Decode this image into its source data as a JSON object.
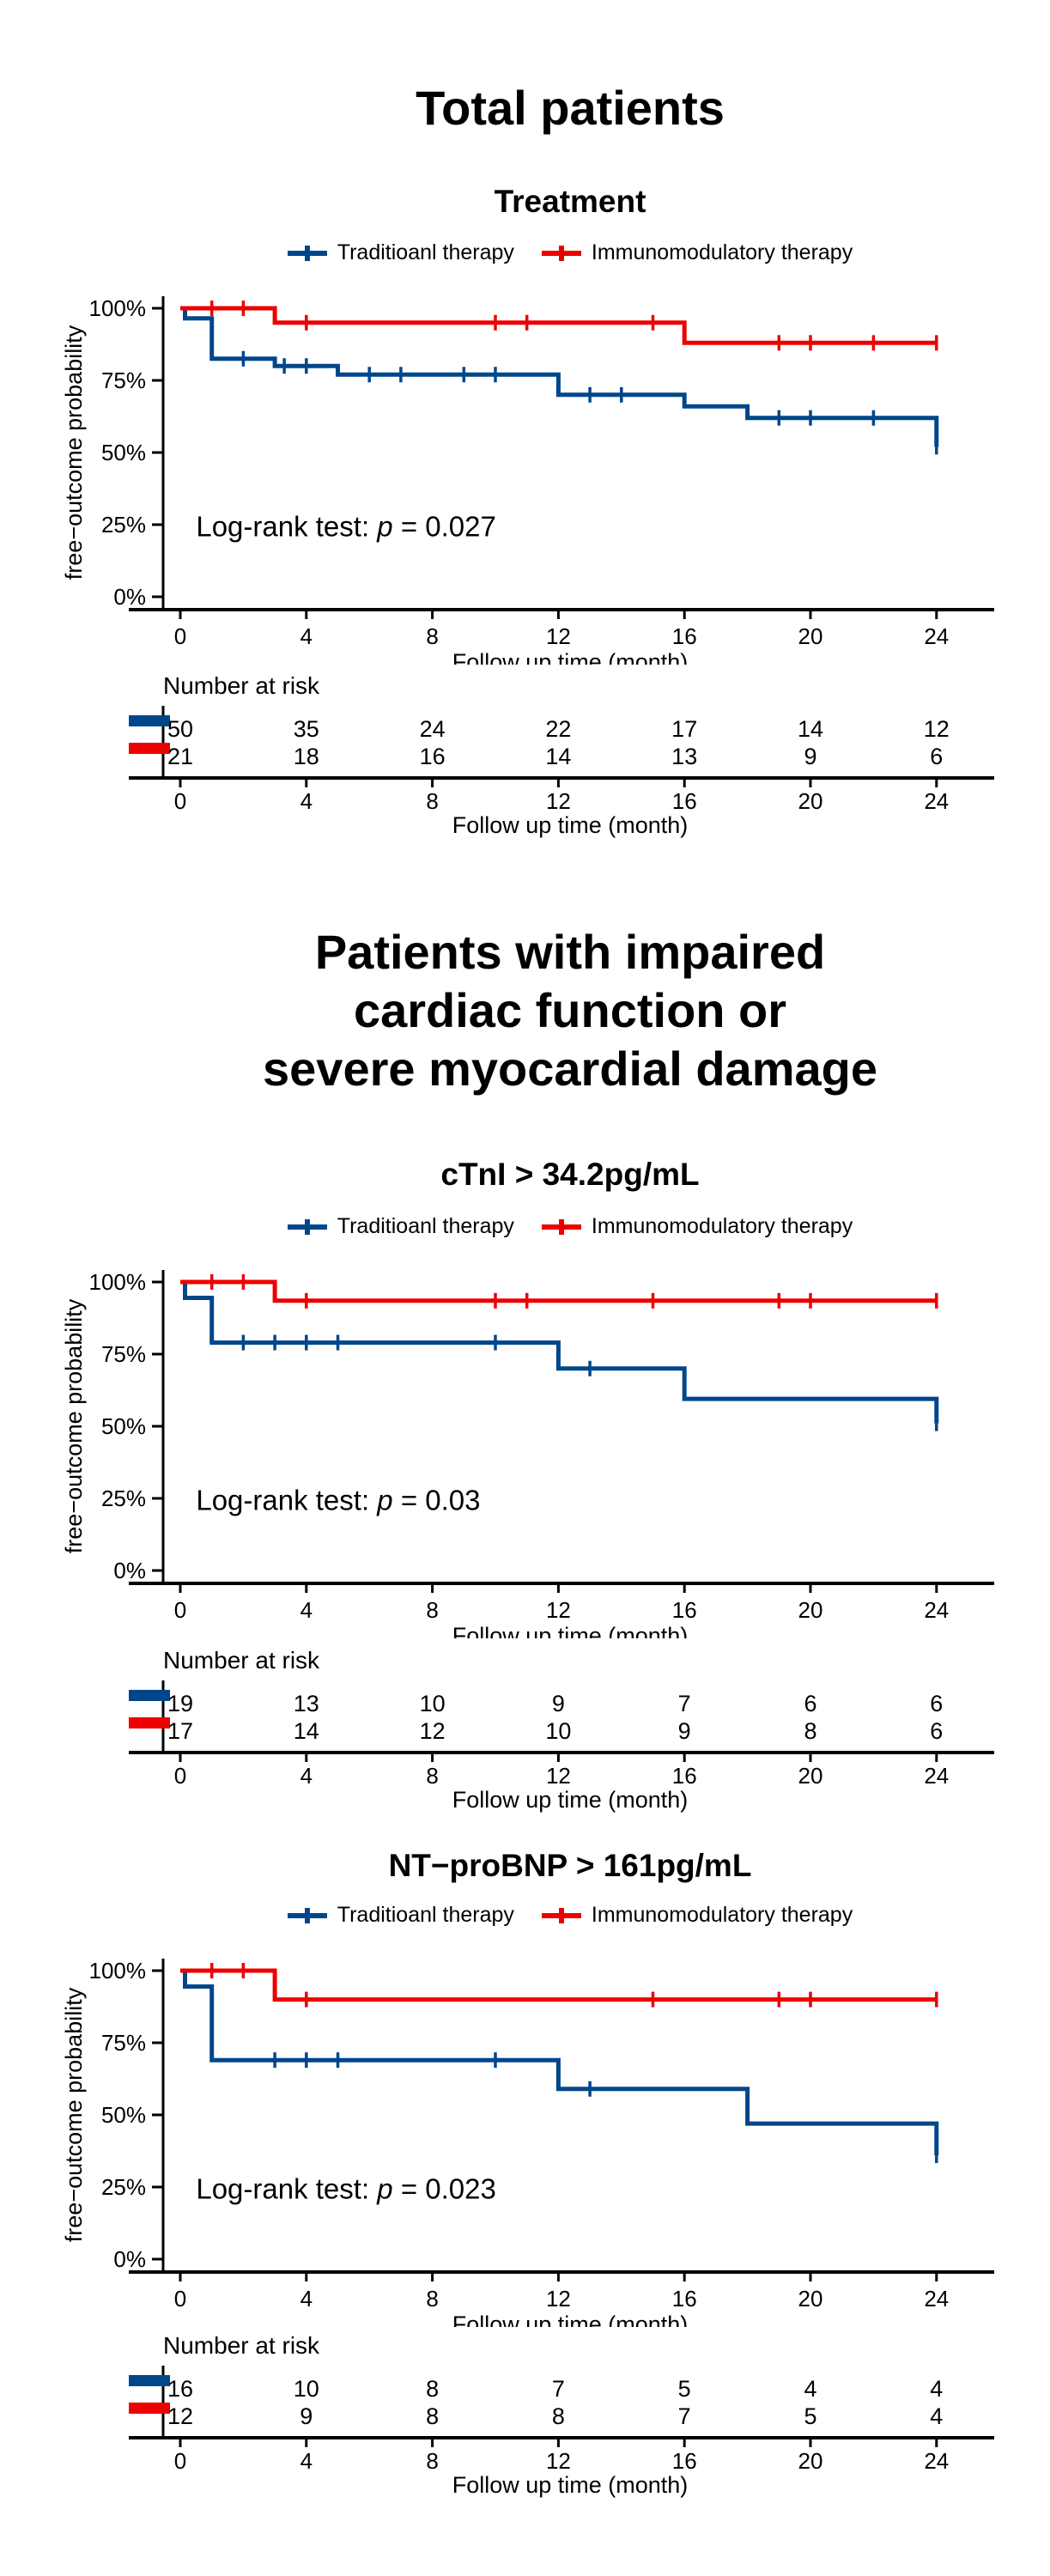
{
  "colors": {
    "traditional": "#00468B",
    "immunomodulatory": "#ED0000",
    "axis": "#000000",
    "text": "#000000",
    "background": "#FFFFFF"
  },
  "legend": {
    "items": [
      {
        "key": "traditional",
        "label": "Traditioanl therapy",
        "color": "#00468B"
      },
      {
        "key": "immunomodulatory",
        "label": "Immunomodulatory therapy",
        "color": "#ED0000"
      }
    ]
  },
  "chart_data": [
    {
      "type": "line",
      "title": "Total patients",
      "title_lines": [
        "Total patients"
      ],
      "subtitle": "Treatment",
      "xlabel": "Follow up time (month)",
      "ylabel": "free−outcome probability",
      "xlim": [
        0,
        24
      ],
      "ylim": [
        0,
        100
      ],
      "x_ticks": [
        0,
        4,
        8,
        12,
        16,
        20,
        24
      ],
      "y_ticks": [
        {
          "v": 0,
          "label": "0%"
        },
        {
          "v": 25,
          "label": "25%"
        },
        {
          "v": 50,
          "label": "50%"
        },
        {
          "v": 75,
          "label": "75%"
        },
        {
          "v": 100,
          "label": "100%"
        }
      ],
      "annotation": {
        "prefix": "Log-rank test: ",
        "p_symbol": "p",
        "suffix": " = 0.027",
        "p_value": 0.027,
        "x": 0.5,
        "y": 21
      },
      "legend_position": "top",
      "grid": false,
      "series": [
        {
          "name": "Traditioanl therapy",
          "color": "#00468B",
          "steps": [
            [
              0,
              100
            ],
            [
              0.15,
              96.5
            ],
            [
              1,
              82.5
            ],
            [
              3,
              80
            ],
            [
              5,
              77
            ],
            [
              12,
              70
            ],
            [
              16,
              66
            ],
            [
              18,
              62
            ],
            [
              24,
              52
            ]
          ],
          "censors": [
            [
              2,
              82.5
            ],
            [
              3.3,
              80
            ],
            [
              4,
              80
            ],
            [
              6,
              77
            ],
            [
              7,
              77
            ],
            [
              9,
              77
            ],
            [
              10,
              77
            ],
            [
              13,
              70
            ],
            [
              14,
              70
            ],
            [
              19,
              62
            ],
            [
              20,
              62
            ],
            [
              22,
              62
            ],
            [
              24,
              52
            ]
          ]
        },
        {
          "name": "Immunomodulatory therapy",
          "color": "#ED0000",
          "steps": [
            [
              0,
              100
            ],
            [
              3,
              95
            ],
            [
              16,
              88
            ],
            [
              24,
              88
            ]
          ],
          "censors": [
            [
              1,
              100
            ],
            [
              2,
              100
            ],
            [
              4,
              95
            ],
            [
              10,
              95
            ],
            [
              11,
              95
            ],
            [
              15,
              95
            ],
            [
              19,
              88
            ],
            [
              20,
              88
            ],
            [
              22,
              88
            ],
            [
              24,
              88
            ]
          ]
        }
      ],
      "number_at_risk": {
        "header": "Number at risk",
        "time_points": [
          0,
          4,
          8,
          12,
          16,
          20,
          24
        ],
        "xlabel": "Follow up time (month)",
        "rows": [
          {
            "series": "Traditioanl therapy",
            "color": "#00468B",
            "values": [
              50,
              35,
              24,
              22,
              17,
              14,
              12
            ]
          },
          {
            "series": "Immunomodulatory therapy",
            "color": "#ED0000",
            "values": [
              21,
              18,
              16,
              14,
              13,
              9,
              6
            ]
          }
        ]
      }
    },
    {
      "type": "line",
      "title": "Patients with impaired cardiac function or severe myocardial damage",
      "title_lines": [
        "Patients with impaired",
        "cardiac function or",
        "severe myocardial damage"
      ],
      "subtitle": "cTnI > 34.2pg/mL",
      "xlabel": "Follow up time (month)",
      "ylabel": "free−outcome probability",
      "xlim": [
        0,
        24
      ],
      "ylim": [
        0,
        100
      ],
      "x_ticks": [
        0,
        4,
        8,
        12,
        16,
        20,
        24
      ],
      "y_ticks": [
        {
          "v": 0,
          "label": "0%"
        },
        {
          "v": 25,
          "label": "25%"
        },
        {
          "v": 50,
          "label": "50%"
        },
        {
          "v": 75,
          "label": "75%"
        },
        {
          "v": 100,
          "label": "100%"
        }
      ],
      "annotation": {
        "prefix": "Log-rank test: ",
        "p_symbol": "p",
        "suffix": " = 0.03",
        "p_value": 0.03,
        "x": 0.5,
        "y": 21
      },
      "legend_position": "top",
      "grid": false,
      "series": [
        {
          "name": "Traditioanl therapy",
          "color": "#00468B",
          "steps": [
            [
              0,
              100
            ],
            [
              0.15,
              94.5
            ],
            [
              1,
              79
            ],
            [
              12,
              70
            ],
            [
              16,
              59.5
            ],
            [
              24,
              51
            ]
          ],
          "censors": [
            [
              2,
              79
            ],
            [
              3,
              79
            ],
            [
              4,
              79
            ],
            [
              5,
              79
            ],
            [
              10,
              79
            ],
            [
              13,
              70
            ],
            [
              24,
              51
            ]
          ]
        },
        {
          "name": "Immunomodulatory therapy",
          "color": "#ED0000",
          "steps": [
            [
              0,
              100
            ],
            [
              3,
              93.5
            ],
            [
              24,
              93.5
            ]
          ],
          "censors": [
            [
              1,
              100
            ],
            [
              2,
              100
            ],
            [
              4,
              93.5
            ],
            [
              10,
              93.5
            ],
            [
              11,
              93.5
            ],
            [
              15,
              93.5
            ],
            [
              19,
              93.5
            ],
            [
              20,
              93.5
            ],
            [
              24,
              93.5
            ]
          ]
        }
      ],
      "number_at_risk": {
        "header": "Number at risk",
        "time_points": [
          0,
          4,
          8,
          12,
          16,
          20,
          24
        ],
        "xlabel": "Follow up time (month)",
        "rows": [
          {
            "series": "Traditioanl therapy",
            "color": "#00468B",
            "values": [
              19,
              13,
              10,
              9,
              7,
              6,
              6
            ]
          },
          {
            "series": "Immunomodulatory therapy",
            "color": "#ED0000",
            "values": [
              17,
              14,
              12,
              10,
              9,
              8,
              6
            ]
          }
        ]
      }
    },
    {
      "type": "line",
      "title": "NT−proBNP > 161pg/mL",
      "title_lines": [],
      "subtitle": "NT−proBNP > 161pg/mL",
      "xlabel": "Follow up time (month)",
      "ylabel": "free−outcome probability",
      "xlim": [
        0,
        24
      ],
      "ylim": [
        0,
        100
      ],
      "x_ticks": [
        0,
        4,
        8,
        12,
        16,
        20,
        24
      ],
      "y_ticks": [
        {
          "v": 0,
          "label": "0%"
        },
        {
          "v": 25,
          "label": "25%"
        },
        {
          "v": 50,
          "label": "50%"
        },
        {
          "v": 75,
          "label": "75%"
        },
        {
          "v": 100,
          "label": "100%"
        }
      ],
      "annotation": {
        "prefix": "Log-rank test: ",
        "p_symbol": "p",
        "suffix": " = 0.023",
        "p_value": 0.023,
        "x": 0.5,
        "y": 21
      },
      "legend_position": "top",
      "grid": false,
      "series": [
        {
          "name": "Traditioanl therapy",
          "color": "#00468B",
          "steps": [
            [
              0,
              100
            ],
            [
              0.15,
              94.5
            ],
            [
              1,
              69
            ],
            [
              12,
              59
            ],
            [
              18,
              47
            ],
            [
              24,
              36
            ]
          ],
          "censors": [
            [
              3,
              69
            ],
            [
              4,
              69
            ],
            [
              5,
              69
            ],
            [
              10,
              69
            ],
            [
              13,
              59
            ],
            [
              24,
              36
            ]
          ]
        },
        {
          "name": "Immunomodulatory therapy",
          "color": "#ED0000",
          "steps": [
            [
              0,
              100
            ],
            [
              3,
              90
            ],
            [
              24,
              90
            ]
          ],
          "censors": [
            [
              1,
              100
            ],
            [
              2,
              100
            ],
            [
              4,
              90
            ],
            [
              15,
              90
            ],
            [
              19,
              90
            ],
            [
              20,
              90
            ],
            [
              24,
              90
            ]
          ]
        }
      ],
      "number_at_risk": {
        "header": "Number at risk",
        "time_points": [
          0,
          4,
          8,
          12,
          16,
          20,
          24
        ],
        "xlabel": "Follow up time (month)",
        "rows": [
          {
            "series": "Traditioanl therapy",
            "color": "#00468B",
            "values": [
              16,
              10,
              8,
              7,
              5,
              4,
              4
            ]
          },
          {
            "series": "Immunomodulatory therapy",
            "color": "#ED0000",
            "values": [
              12,
              9,
              8,
              8,
              7,
              5,
              4
            ]
          }
        ]
      }
    }
  ]
}
